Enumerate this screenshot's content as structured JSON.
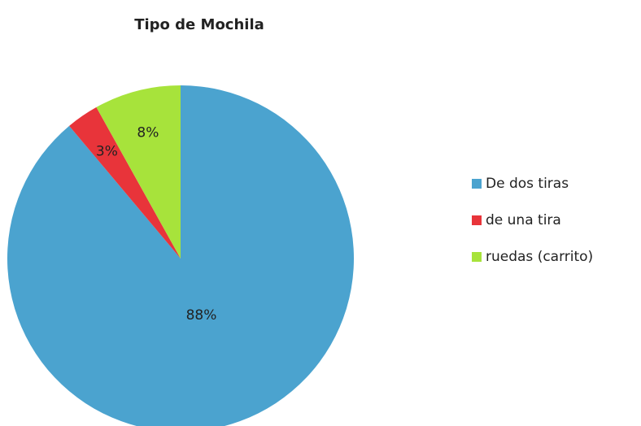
{
  "chart_data": {
    "type": "pie",
    "title": "Tipo de Mochila",
    "categories": [
      "De dos tiras",
      "de una tira",
      "ruedas (carrito)"
    ],
    "values": [
      88,
      3,
      8
    ],
    "value_labels": [
      "88%",
      "3%",
      "8%"
    ],
    "colors": [
      "#4ba3cf",
      "#e8343a",
      "#a7e33b"
    ],
    "legend": "right"
  }
}
